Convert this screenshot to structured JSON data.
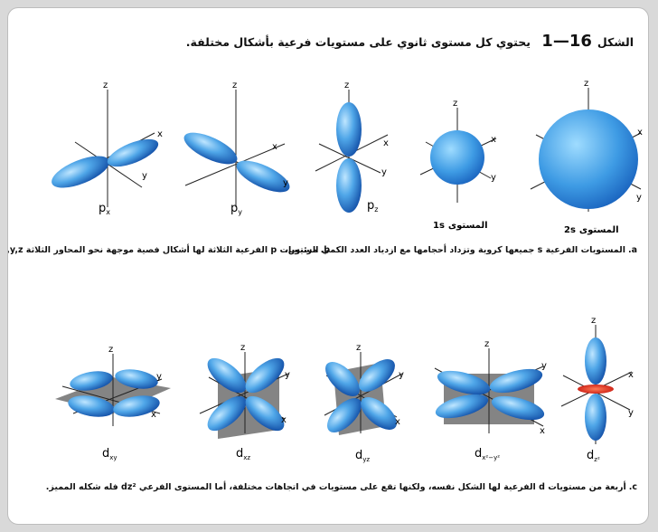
{
  "figure": {
    "label": "الشكل",
    "number": "16",
    "sep": "—",
    "sub": "1",
    "caption": "يحتوي كل مستوى ثانوي على مستويات فرعية بأشكال مختلفة."
  },
  "axes": {
    "x": "x",
    "y": "y",
    "z": "z"
  },
  "p_orbitals": [
    {
      "main": "p",
      "sub": "x"
    },
    {
      "main": "p",
      "sub": "y"
    },
    {
      "main": "p",
      "sub": "z"
    }
  ],
  "s_orbitals": [
    {
      "prefix": "المستوى",
      "name": "1s"
    },
    {
      "prefix": "المستوى",
      "name": "2s"
    }
  ],
  "captions": {
    "a_letter": "a.",
    "a_text": "المستويات الفرعية s جميعها كروية وتزداد أحجامها مع ازدياد العدد الكمي الرئيس.",
    "b_letter": "b.",
    "b_text": "مستويات p الفرعية الثلاثة لها أشكال فصية موجهة نحو المحاور الثلاثة x,y,z.",
    "c_letter": "c.",
    "c_text": "أربعة من مستويات d الفرعية لها الشكل نفسه، ولكنها تقع على مستويات في اتجاهات مختلفة، أما المستوى الفرعي dz² فله شكله المميز."
  },
  "d_orbitals": [
    {
      "main": "d",
      "sub": "xy"
    },
    {
      "main": "d",
      "sub": "xz"
    },
    {
      "main": "d",
      "sub": "yz"
    },
    {
      "main": "d",
      "sub": "x²−y²"
    },
    {
      "main": "d",
      "sub": "z²"
    }
  ],
  "colors": {
    "orbital_dark": "#1f5fb8",
    "orbital_light": "#7ec8f5",
    "plane": "#6e6e6e",
    "ring": "#e0402a"
  }
}
